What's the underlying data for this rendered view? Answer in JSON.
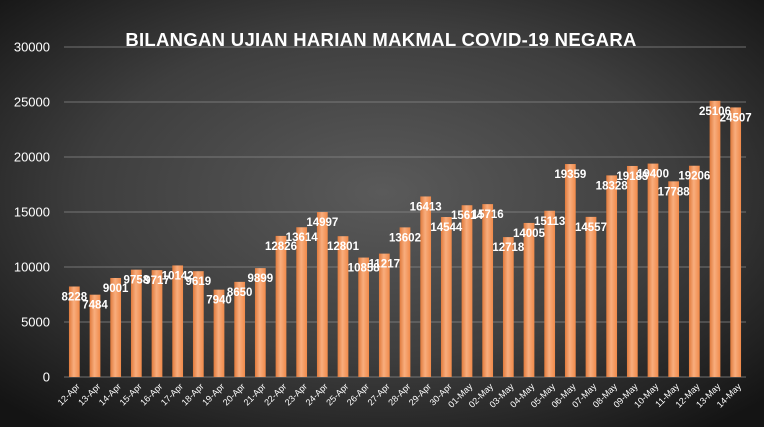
{
  "chart_data": {
    "type": "bar",
    "title": "BILANGAN UJIAN HARIAN MAKMAL COVID-19 NEGARA",
    "xlabel": "",
    "ylabel": "",
    "ylim": [
      0,
      30000
    ],
    "yticks": [
      0,
      5000,
      10000,
      15000,
      20000,
      25000,
      30000
    ],
    "grid": true,
    "legend": "none",
    "colors": {
      "background_center": "#5a5a5a",
      "background_edge": "#141414",
      "bar": "#f4955a",
      "bar_light": "#f8ad7d",
      "bar_dark": "#e07a3c",
      "gridline": "#8a8a8a",
      "text": "#ffffff"
    },
    "categories": [
      "12-Apr",
      "13-Apr",
      "14-Apr",
      "15-Apr",
      "16-Apr",
      "17-Apr",
      "18-Apr",
      "19-Apr",
      "20-Apr",
      "21-Apr",
      "22-Apr",
      "23-Apr",
      "24-Apr",
      "25-Apr",
      "26-Apr",
      "27-Apr",
      "28-Apr",
      "29-Apr",
      "30-Apr",
      "01-May",
      "02-May",
      "03-May",
      "04-May",
      "05-May",
      "06-May",
      "07-May",
      "08-May",
      "09-May",
      "10-May",
      "11-May",
      "12-May",
      "13-May",
      "14-May"
    ],
    "values": [
      8228,
      7484,
      9001,
      9758,
      9717,
      10142,
      9619,
      7940,
      8650,
      9899,
      12826,
      13614,
      14997,
      12801,
      10858,
      11217,
      13602,
      16413,
      14544,
      15614,
      15716,
      12718,
      14005,
      15113,
      19359,
      14557,
      18328,
      19185,
      19400,
      17788,
      19206,
      25106,
      24507
    ]
  }
}
